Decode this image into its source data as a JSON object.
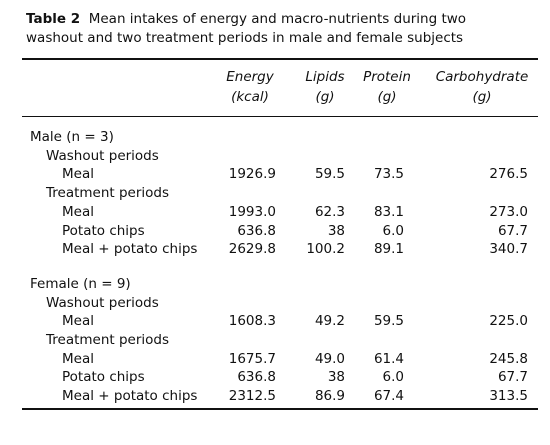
{
  "caption": {
    "label": "Table 2",
    "lines": [
      "Mean intakes of energy and macro-nutrients during two",
      "washout and two treatment periods in male and female subjects"
    ]
  },
  "table": {
    "columns": [
      {
        "name": "Energy",
        "unit": "(kcal)"
      },
      {
        "name": "Lipids",
        "unit": "(g)"
      },
      {
        "name": "Protein",
        "unit": "(g)"
      },
      {
        "name": "Carbohydrate",
        "unit": "(g)"
      }
    ],
    "groups": [
      {
        "title": "Male (n = 3)",
        "subgroups": [
          {
            "title": "Washout periods",
            "rows": [
              {
                "label": "Meal",
                "values": [
                  "1926.9",
                  "59.5",
                  "73.5",
                  "276.5"
                ]
              }
            ]
          },
          {
            "title": "Treatment periods",
            "rows": [
              {
                "label": "Meal",
                "values": [
                  "1993.0",
                  "62.3",
                  "83.1",
                  "273.0"
                ]
              },
              {
                "label": "Potato chips",
                "values": [
                  "636.8",
                  "38",
                  "6.0",
                  "67.7"
                ]
              },
              {
                "label": "Meal + potato chips",
                "values": [
                  "2629.8",
                  "100.2",
                  "89.1",
                  "340.7"
                ]
              }
            ]
          }
        ]
      },
      {
        "title": "Female (n = 9)",
        "subgroups": [
          {
            "title": "Washout periods",
            "rows": [
              {
                "label": "Meal",
                "values": [
                  "1608.3",
                  "49.2",
                  "59.5",
                  "225.0"
                ]
              }
            ]
          },
          {
            "title": "Treatment periods",
            "rows": [
              {
                "label": "Meal",
                "values": [
                  "1675.7",
                  "49.0",
                  "61.4",
                  "245.8"
                ]
              },
              {
                "label": "Potato chips",
                "values": [
                  "636.8",
                  "38",
                  "6.0",
                  "67.7"
                ]
              },
              {
                "label": "Meal + potato chips",
                "values": [
                  "2312.5",
                  "86.9",
                  "67.4",
                  "313.5"
                ]
              }
            ]
          }
        ]
      }
    ]
  }
}
